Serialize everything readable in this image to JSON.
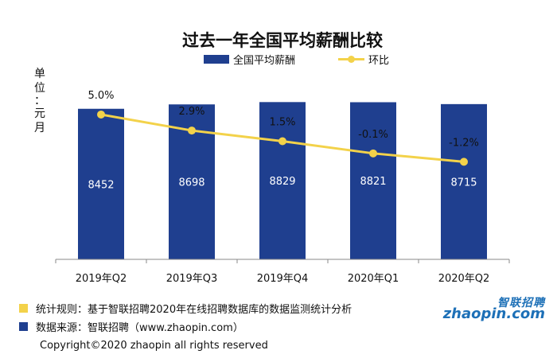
{
  "chart_data": {
    "type": "bar",
    "title": "过去一年全国平均薪酬比较",
    "ylabel": "单位：元/月",
    "categories": [
      "2019年Q2",
      "2019年Q3",
      "2019年Q4",
      "2020年Q1",
      "2020年Q2"
    ],
    "series": [
      {
        "name": "全国平均薪酬",
        "type": "bar",
        "values": [
          8452,
          8698,
          8829,
          8821,
          8715
        ],
        "color": "#1f3f8f"
      },
      {
        "name": "环比",
        "type": "line",
        "values": [
          5.0,
          2.9,
          1.5,
          -0.1,
          -1.2
        ],
        "labels": [
          "5.0%",
          "2.9%",
          "1.5%",
          "-0.1%",
          "-1.2%"
        ],
        "color": "#f3d24a"
      }
    ],
    "bar_ylim": [
      0,
      9200
    ],
    "line_ylim": [
      -14,
      7.5
    ],
    "grid": false,
    "legend_position": "top"
  },
  "notes": {
    "rule": "统计规则：基于智联招聘2020年在线招聘数据库的数据监测统计分析",
    "rule_color": "#f3d24a",
    "source": "数据来源：智联招聘（www.zhaopin.com）",
    "source_color": "#1f3f8f"
  },
  "copyright": "Copyright©2020 zhaopin all rights reserved",
  "logo": {
    "cn": "智联招聘",
    "en": "zhaopin.com"
  }
}
